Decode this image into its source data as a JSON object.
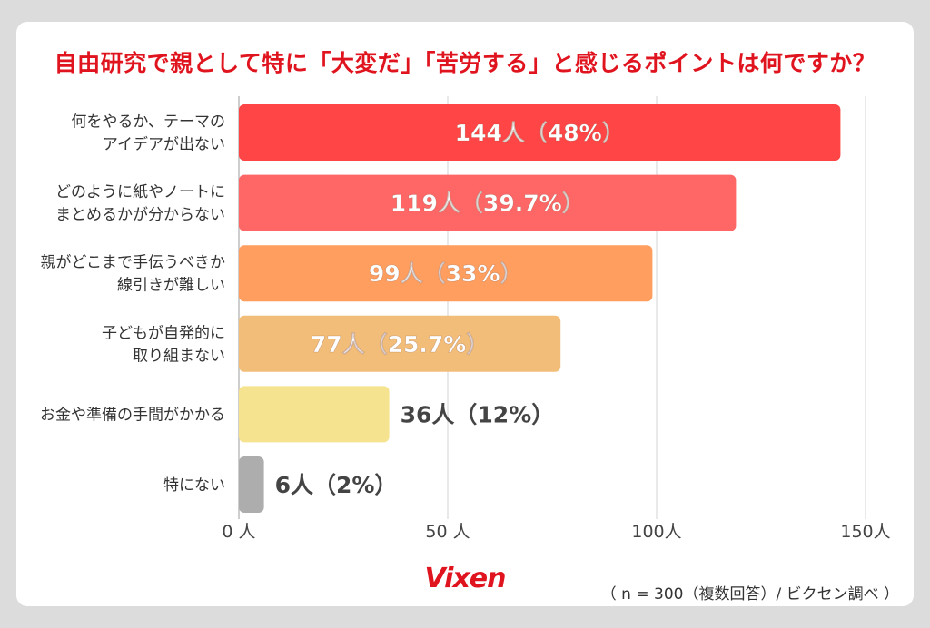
{
  "header": {
    "title": "自由研究で親として特に「大変だ」「苦労する」と感じるポイントは何ですか？"
  },
  "footer": {
    "brand": "Vixen",
    "note": "（ n = 300（複数回答）/ ビクセン調べ ）"
  },
  "chart_data": {
    "type": "bar",
    "orientation": "horizontal",
    "categories": [
      [
        "何をやるか、テーマの",
        "アイデアが出ない"
      ],
      [
        "どのように紙やノートに",
        "まとめるかが分からない"
      ],
      [
        "親がどこまで手伝うべきか",
        "線引きが難しい"
      ],
      [
        "子どもが自発的に",
        "取り組まない"
      ],
      [
        "お金や準備の手間がかかる"
      ],
      [
        "特にない"
      ]
    ],
    "values": [
      144,
      119,
      99,
      77,
      36,
      6
    ],
    "data_labels": [
      "144人（48%）",
      "119人（39.7%）",
      "99人（33%）",
      "77人（25.7%）",
      "36人（12%）",
      "6人（2%）"
    ],
    "bar_colors": [
      "#ff4545",
      "#ff6666",
      "#ff9e5e",
      "#f2bd78",
      "#f6e390",
      "#adadad"
    ],
    "label_inside": [
      true,
      true,
      true,
      true,
      false,
      false
    ],
    "xlim": [
      0,
      150
    ],
    "xticks": [
      0,
      50,
      100,
      150
    ],
    "xtick_labels": [
      "0 人",
      "50 人",
      "100人",
      "150人"
    ],
    "grid": true
  }
}
